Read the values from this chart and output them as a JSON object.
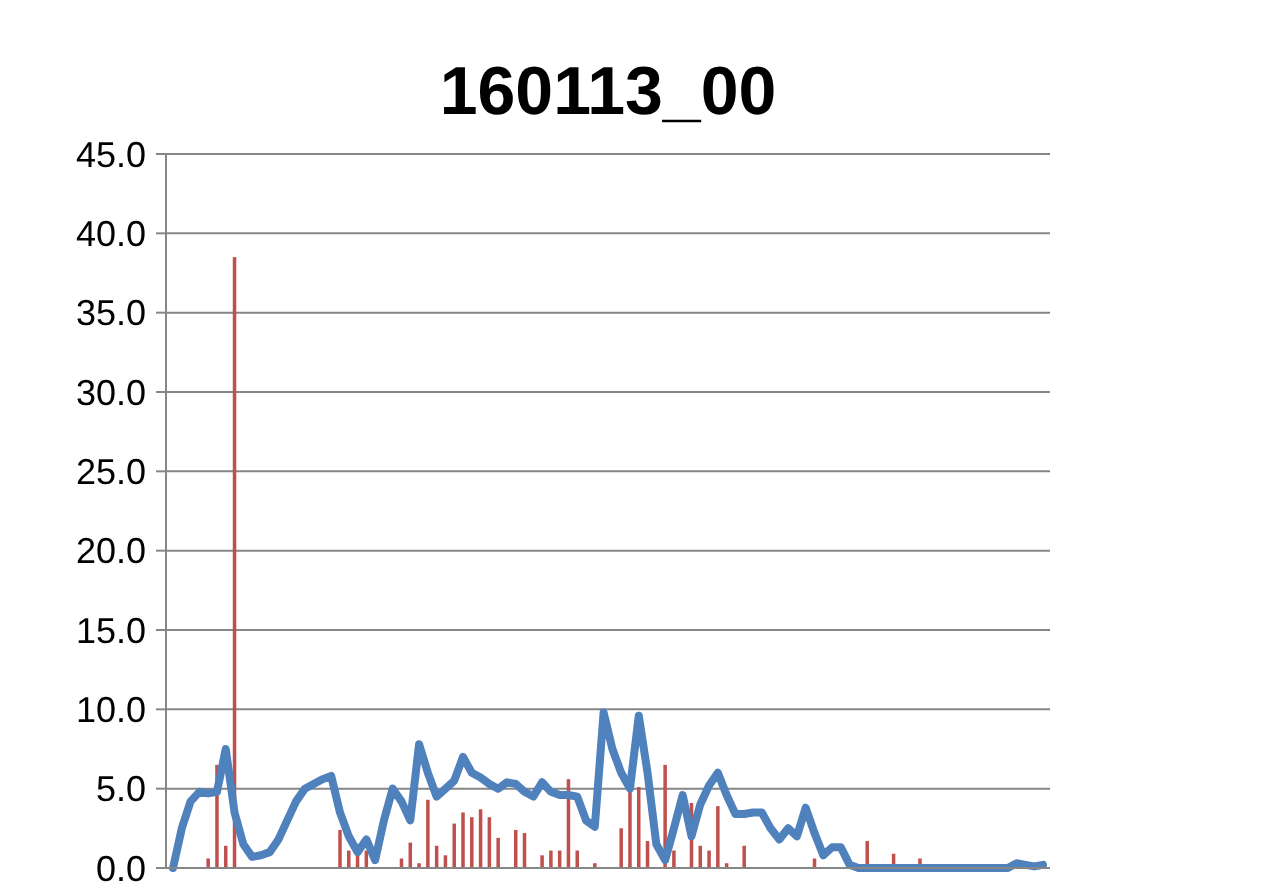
{
  "chart_data": {
    "type": "bar",
    "title": "160113_00",
    "categories": [
      null,
      null,
      null,
      null,
      null,
      null,
      null,
      null,
      null,
      null,
      null,
      null,
      null,
      null,
      null,
      null,
      null,
      null,
      null,
      null,
      null,
      null,
      null,
      null,
      null,
      null,
      null,
      null,
      null,
      null,
      null,
      null,
      null,
      null,
      null,
      null,
      null,
      null,
      null,
      null,
      null,
      null,
      null,
      null,
      null,
      null,
      null,
      null,
      null,
      null,
      null,
      null,
      null,
      null,
      null,
      null,
      null,
      null,
      null,
      null,
      null,
      null,
      null,
      null,
      null,
      null,
      null,
      null,
      null,
      null,
      null,
      null,
      null,
      null,
      null,
      null,
      null,
      null,
      null,
      null,
      null,
      null,
      null,
      null,
      null,
      null,
      null,
      null,
      null,
      null,
      null,
      null,
      null,
      null,
      null,
      null,
      null,
      null,
      null,
      null
    ],
    "series": [
      {
        "color": "#c0504d",
        "values": [
          0,
          0,
          0,
          null,
          0.6,
          6.5,
          1.4,
          38.5,
          null,
          0,
          0,
          0,
          null,
          0,
          0,
          0,
          0,
          0,
          0,
          2.4,
          1.1,
          1.0,
          1.1,
          0,
          0,
          0,
          0.6,
          1.6,
          0.3,
          4.3,
          1.4,
          0.8,
          2.8,
          3.5,
          3.2,
          3.7,
          3.2,
          1.9,
          0,
          2.4,
          2.2,
          0,
          0.8,
          1.1,
          1.1,
          5.6,
          1.1,
          0,
          0.3,
          0,
          null,
          2.5,
          4.8,
          5.1,
          1.7,
          0,
          6.5,
          1.1,
          0,
          4.1,
          1.4,
          1.1,
          3.9,
          0.3,
          0,
          1.4,
          0,
          null,
          0,
          0,
          0,
          0,
          0,
          0.6,
          0,
          0,
          0,
          0,
          0,
          1.7,
          0,
          0,
          0.9,
          0,
          0,
          0.6,
          0,
          0,
          0,
          0,
          0,
          0,
          0,
          0,
          0,
          0,
          0,
          0,
          0,
          0
        ]
      },
      {
        "type": "line",
        "color": "#4f81bd",
        "values": [
          0,
          2.5,
          4.2,
          4.8,
          4.7,
          4.8,
          7.5,
          3.5,
          1.5,
          0.7,
          0.8,
          1.0,
          1.8,
          3.0,
          4.2,
          5.0,
          5.3,
          5.6,
          5.8,
          3.5,
          2,
          1.0,
          1.8,
          0.5,
          3,
          5,
          4.2,
          3,
          7.8,
          6,
          4.5,
          5,
          5.5,
          7,
          6,
          5.7,
          5.3,
          5.0,
          5.4,
          5.3,
          4.8,
          4.5,
          5.4,
          4.8,
          4.6,
          4.6,
          4.5,
          3.0,
          2.6,
          9.8,
          7.5,
          6,
          5,
          9.6,
          6,
          1.5,
          0.5,
          2.5,
          4.6,
          2,
          4,
          5.2,
          6,
          4.6,
          3.4,
          3.4,
          3.5,
          3.5,
          2.5,
          1.8,
          2.5,
          2.0,
          3.8,
          2.2,
          0.8,
          1.3,
          1.3,
          0.2,
          0,
          0,
          0,
          0,
          0,
          0,
          0,
          0,
          0,
          0,
          0,
          0,
          0,
          0,
          0,
          0,
          0,
          0,
          0.3,
          0.2,
          0.1,
          0.2
        ]
      }
    ],
    "ylim": [
      0,
      45
    ],
    "yticks": [
      {
        "value": 0,
        "label": "0.0"
      },
      {
        "value": 5,
        "label": "5.0"
      },
      {
        "value": 10,
        "label": "10.0"
      },
      {
        "value": 15,
        "label": "15.0"
      },
      {
        "value": 20,
        "label": "20.0"
      },
      {
        "value": 25,
        "label": "25.0"
      },
      {
        "value": 30,
        "label": "30.0"
      },
      {
        "value": 35,
        "label": "35.0"
      },
      {
        "value": 40,
        "label": "40.0"
      },
      {
        "value": 45,
        "label": "45.0"
      }
    ],
    "grid": "y",
    "line_style": "solid",
    "marker": "none"
  }
}
